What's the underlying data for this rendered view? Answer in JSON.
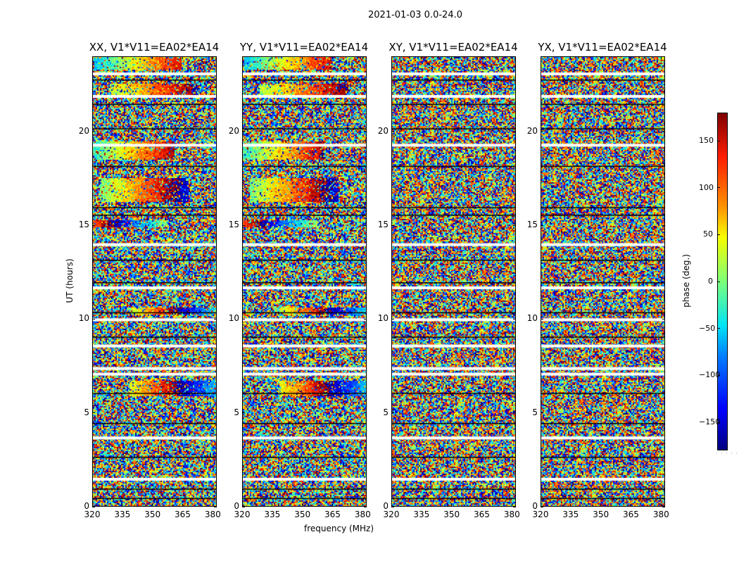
{
  "figure_title": "2021-01-03 0.0-24.0",
  "colors": {
    "flag": "#ffffff",
    "zero_row": "#000000",
    "cmap": [
      "#00007f",
      "#0000ff",
      "#0080ff",
      "#00e5f5",
      "#7dff7a",
      "#f6ff00",
      "#ff9400",
      "#ff1d00",
      "#7f0000"
    ]
  },
  "chart_data": {
    "type": "heatmap",
    "xlabel": "frequency (MHz)",
    "ylabel": "UT (hours)",
    "xlim": [
      320,
      382
    ],
    "ylim": [
      0,
      24
    ],
    "x_ticks": [
      320,
      335,
      350,
      365,
      380
    ],
    "y_ticks": [
      0,
      5,
      10,
      15,
      20
    ],
    "colorbar": {
      "label": "phase (deg.)",
      "range": [
        -180,
        180
      ],
      "ticks": [
        150,
        100,
        50,
        0,
        -50,
        -100,
        -150
      ],
      "tick_labels": [
        "150",
        "100",
        "50",
        "0",
        "−50",
        "−100",
        "−150"
      ]
    },
    "panels": [
      {
        "title": "XX, V1*V11=EA02*EA14",
        "pol": "XX",
        "coherent": true
      },
      {
        "title": "YY, V1*V11=EA02*EA14",
        "pol": "YY",
        "coherent": true
      },
      {
        "title": "XY, V1*V11=EA02*EA14",
        "pol": "XY",
        "coherent": false
      },
      {
        "title": "YX, V1*V11=EA02*EA14",
        "pol": "YX",
        "coherent": false
      }
    ],
    "coherent_bands_ut": [
      {
        "from": 23.4,
        "to": 24.0,
        "center_mhz": 342,
        "start_phase": -60,
        "slope": 5
      },
      {
        "from": 22.0,
        "to": 22.6,
        "center_mhz": 350,
        "start_phase": -20,
        "slope": 4
      },
      {
        "from": 18.6,
        "to": 19.5,
        "center_mhz": 338,
        "start_phase": -30,
        "slope": 5
      },
      {
        "from": 15.0,
        "to": 15.3,
        "center_mhz": 335,
        "start_phase": 120,
        "slope": 7
      },
      {
        "from": 16.3,
        "to": 17.6,
        "center_mhz": 345,
        "start_phase": -20,
        "slope": 5
      },
      {
        "from": 10.3,
        "to": 10.7,
        "center_mhz": 360,
        "start_phase": -110,
        "slope": 7
      },
      {
        "from": 6.0,
        "to": 6.8,
        "center_mhz": 360,
        "start_phase": -70,
        "slope": 6
      }
    ],
    "flagged_ut": [
      23.1,
      21.9,
      19.3,
      14.0,
      11.7,
      10.0,
      8.6,
      7.4,
      7.1,
      3.7,
      1.5
    ],
    "zero_rows_ut": [
      22.8,
      21.5,
      20.2,
      18.2,
      16.0,
      15.6,
      13.2,
      12.0,
      10.4,
      9.1,
      6.1,
      4.5,
      2.7,
      1.0,
      0.5
    ]
  }
}
